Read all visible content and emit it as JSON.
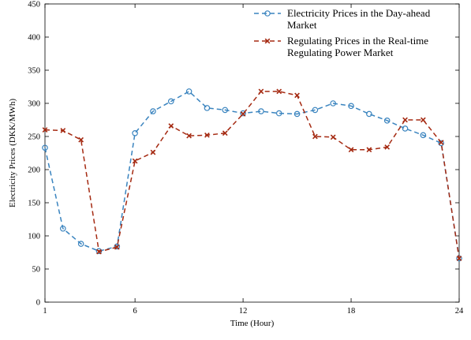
{
  "chart_data": {
    "type": "line",
    "xlabel": "Time (Hour)",
    "ylabel": "Electricity Prices (DKK/MWh)",
    "xlim": [
      1,
      24
    ],
    "ylim": [
      0,
      450
    ],
    "x_ticks": [
      1,
      6,
      12,
      18,
      24
    ],
    "y_ticks": [
      0,
      50,
      100,
      150,
      200,
      250,
      300,
      350,
      400,
      450
    ],
    "grid": false,
    "legend_position": "top-right",
    "x": [
      1,
      2,
      3,
      4,
      5,
      6,
      7,
      8,
      9,
      10,
      11,
      12,
      13,
      14,
      15,
      16,
      17,
      18,
      19,
      20,
      21,
      22,
      23,
      24
    ],
    "series": [
      {
        "name": "Electricity Prices in the Day-ahead Market",
        "name_lines": [
          "Electricity Prices in the Day-ahead",
          "Market"
        ],
        "color": "#3a84bf",
        "marker": "circle",
        "values": [
          233,
          111,
          88,
          77,
          84,
          255,
          288,
          303,
          318,
          293,
          290,
          285,
          288,
          285,
          284,
          290,
          300,
          296,
          284,
          274,
          262,
          252,
          240,
          66
        ]
      },
      {
        "name": "Regulating Prices in the Real-time Regulating Power Market",
        "name_lines": [
          "Regulating Prices in the Real-time",
          "Regulating Power Market"
        ],
        "color": "#a52a12",
        "marker": "x",
        "values": [
          260,
          259,
          245,
          76,
          83,
          213,
          226,
          266,
          251,
          252,
          255,
          284,
          318,
          318,
          312,
          250,
          249,
          230,
          230,
          234,
          275,
          275,
          241,
          66
        ]
      }
    ]
  }
}
